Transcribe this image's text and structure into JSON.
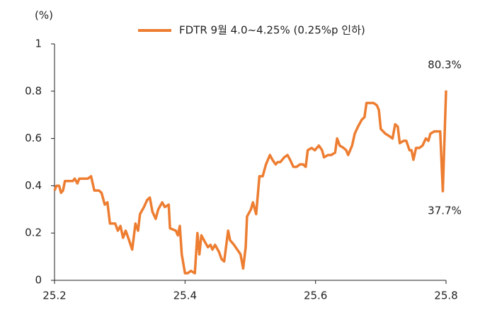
{
  "chart_data": {
    "type": "line",
    "y_label": "(%)",
    "annotations": [
      "80.3%",
      "37.7%"
    ],
    "xlim": [
      25.2,
      25.8
    ],
    "xticks": [
      25.2,
      25.4,
      25.6,
      25.8
    ],
    "ylim": [
      0,
      1
    ],
    "yticks": [
      0,
      0.2,
      0.4,
      0.6,
      0.8,
      1
    ],
    "grid": false,
    "legend": "top",
    "x": [
      25.2,
      25.203,
      25.207,
      25.21,
      25.213,
      25.216,
      25.223,
      25.228,
      25.231,
      25.235,
      25.238,
      25.244,
      25.251,
      25.256,
      25.261,
      25.268,
      25.272,
      25.277,
      25.281,
      25.285,
      25.293,
      25.297,
      25.301,
      25.305,
      25.309,
      25.313,
      25.319,
      25.324,
      25.328,
      25.331,
      25.337,
      25.342,
      25.346,
      25.35,
      25.355,
      25.359,
      25.365,
      25.369,
      25.375,
      25.377,
      25.386,
      25.389,
      25.392,
      25.395,
      25.4,
      25.404,
      25.409,
      25.415,
      25.419,
      25.422,
      25.425,
      25.431,
      25.435,
      25.439,
      25.442,
      25.446,
      25.452,
      25.456,
      25.46,
      25.466,
      25.469,
      25.475,
      25.48,
      25.485,
      25.489,
      25.493,
      25.495,
      25.501,
      25.504,
      25.509,
      25.514,
      25.519,
      25.524,
      25.53,
      25.534,
      25.539,
      25.542,
      25.546,
      25.552,
      25.557,
      25.561,
      25.566,
      25.571,
      25.576,
      25.581,
      25.585,
      25.588,
      25.594,
      25.599,
      25.605,
      25.61,
      25.613,
      25.619,
      25.624,
      25.63,
      25.633,
      25.637,
      25.643,
      25.647,
      25.65,
      25.656,
      25.66,
      25.665,
      25.671,
      25.675,
      25.678,
      25.685,
      25.689,
      25.694,
      25.697,
      25.7,
      25.707,
      25.713,
      25.718,
      25.722,
      25.726,
      25.729,
      25.735,
      25.739,
      25.744,
      25.747,
      25.75,
      25.754,
      25.759,
      25.764,
      25.769,
      25.773,
      25.776,
      25.782,
      25.787,
      25.791,
      25.795,
      25.8
    ],
    "series": [
      {
        "name": "FDTR 9월 4.0~4.25% (0.25%p 인하)",
        "color": "#ED7D31",
        "values": [
          0.38,
          0.4,
          0.4,
          0.37,
          0.38,
          0.42,
          0.42,
          0.42,
          0.43,
          0.41,
          0.43,
          0.43,
          0.43,
          0.44,
          0.38,
          0.38,
          0.37,
          0.32,
          0.33,
          0.24,
          0.24,
          0.21,
          0.23,
          0.18,
          0.21,
          0.18,
          0.13,
          0.24,
          0.21,
          0.28,
          0.31,
          0.34,
          0.35,
          0.29,
          0.26,
          0.3,
          0.33,
          0.31,
          0.32,
          0.22,
          0.21,
          0.19,
          0.23,
          0.11,
          0.03,
          0.03,
          0.04,
          0.03,
          0.2,
          0.11,
          0.19,
          0.16,
          0.14,
          0.15,
          0.13,
          0.15,
          0.12,
          0.09,
          0.08,
          0.21,
          0.17,
          0.15,
          0.13,
          0.11,
          0.05,
          0.14,
          0.27,
          0.3,
          0.33,
          0.28,
          0.44,
          0.44,
          0.49,
          0.53,
          0.51,
          0.49,
          0.5,
          0.5,
          0.52,
          0.53,
          0.51,
          0.48,
          0.48,
          0.49,
          0.49,
          0.48,
          0.55,
          0.56,
          0.55,
          0.57,
          0.55,
          0.52,
          0.53,
          0.53,
          0.54,
          0.6,
          0.57,
          0.56,
          0.55,
          0.53,
          0.57,
          0.62,
          0.65,
          0.68,
          0.69,
          0.75,
          0.75,
          0.75,
          0.74,
          0.72,
          0.64,
          0.62,
          0.61,
          0.6,
          0.66,
          0.65,
          0.58,
          0.59,
          0.59,
          0.55,
          0.55,
          0.51,
          0.56,
          0.56,
          0.57,
          0.6,
          0.59,
          0.62,
          0.63,
          0.63,
          0.63,
          0.377,
          0.803
        ]
      }
    ]
  }
}
